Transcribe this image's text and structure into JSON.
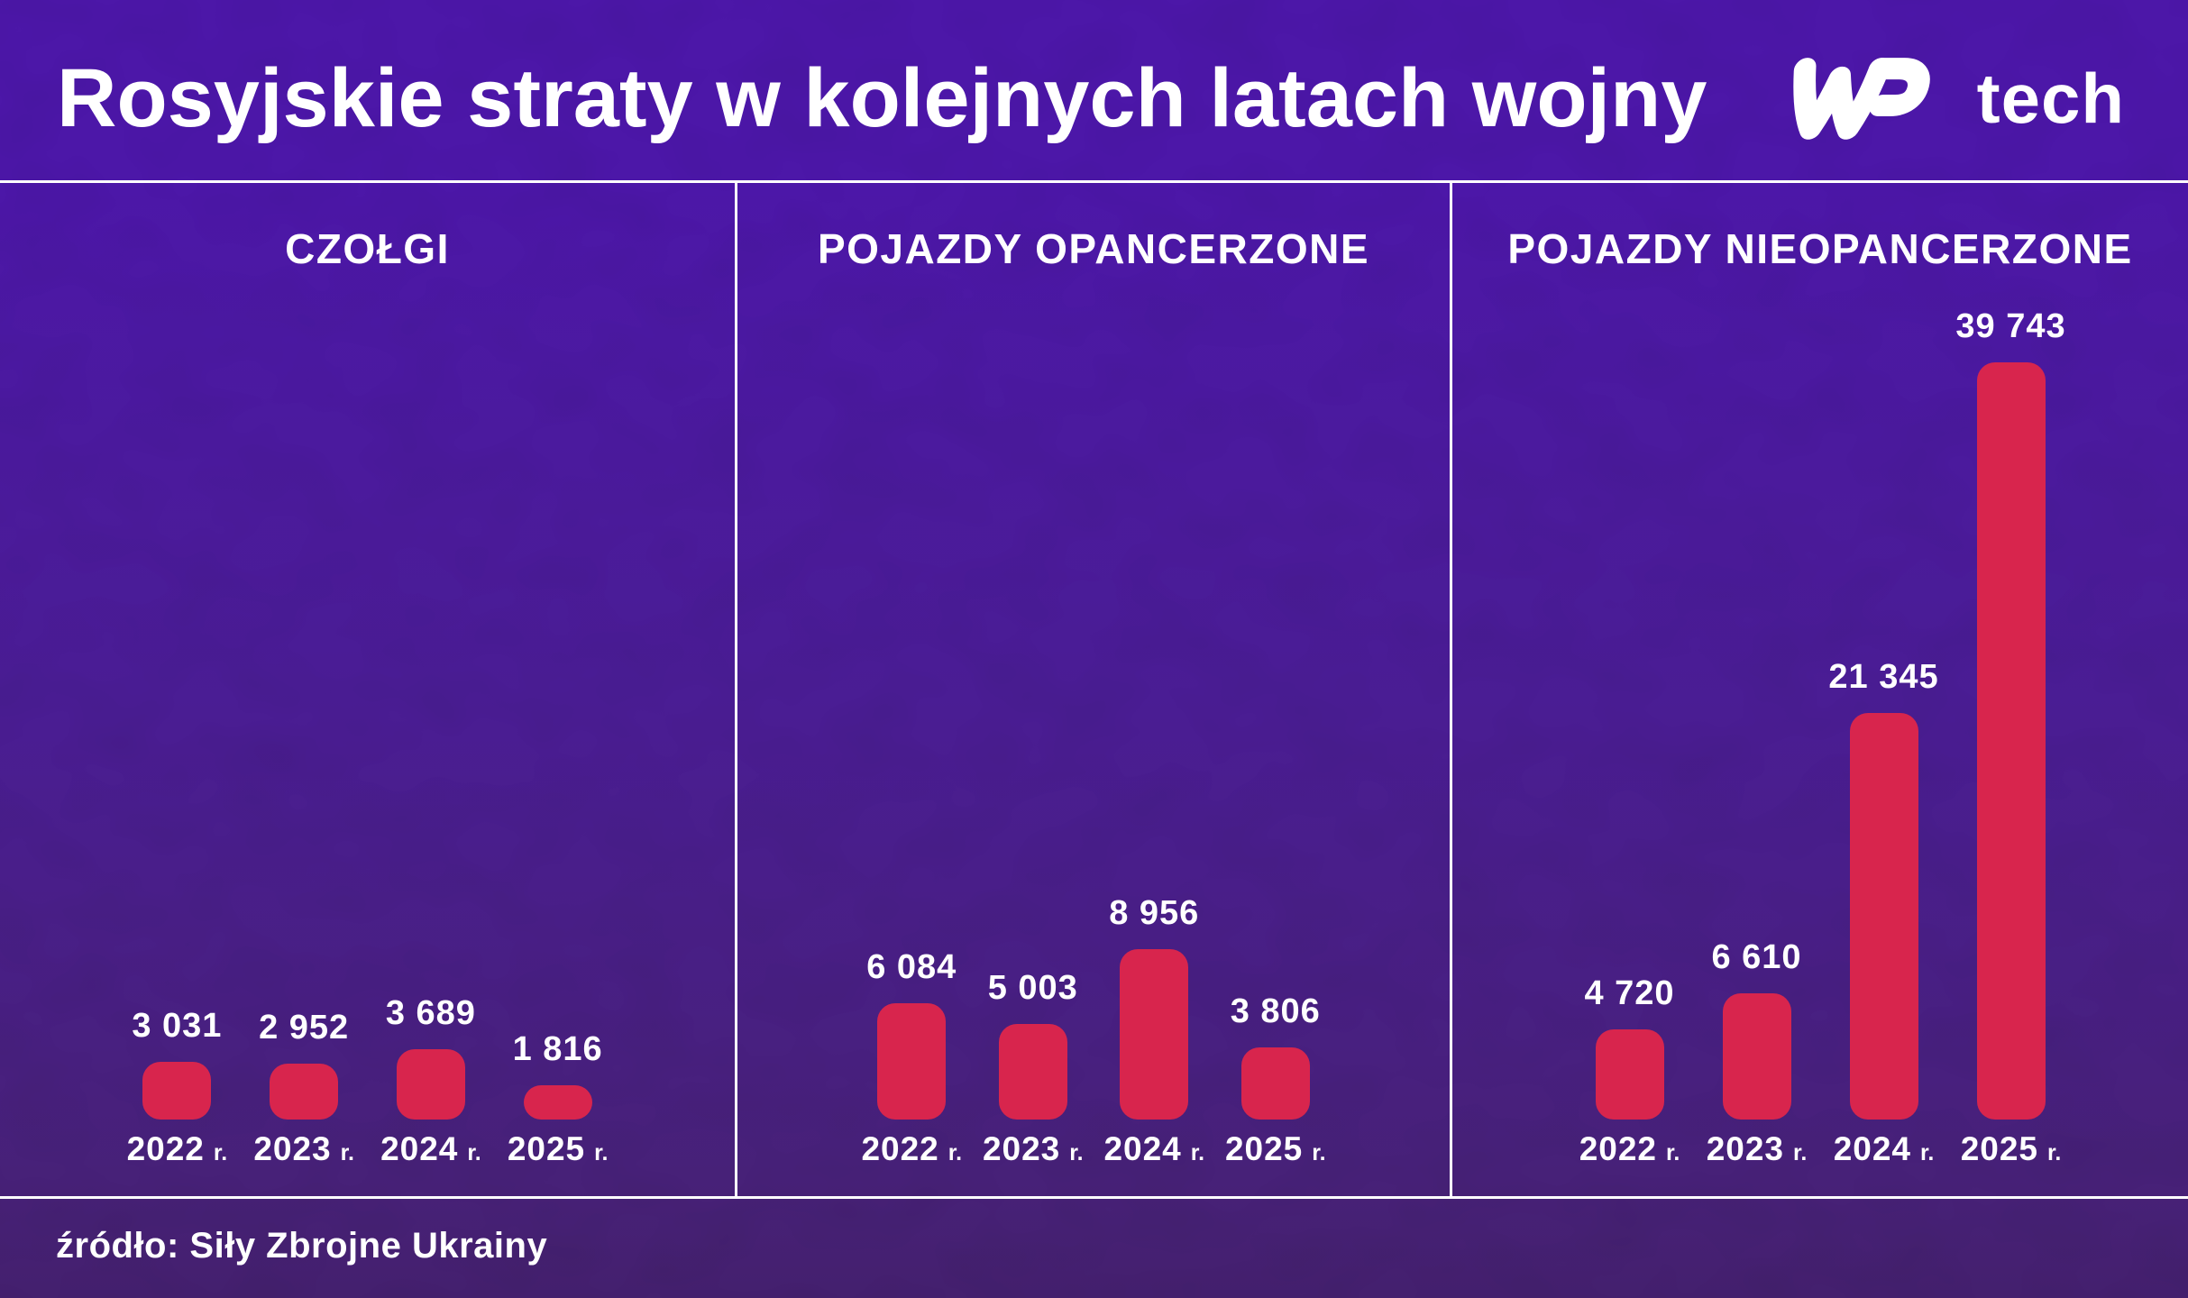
{
  "header": {
    "title": "Rosyjskie straty w kolejnych latach wojny",
    "logo_suffix": "tech"
  },
  "footer": {
    "source": "źródło: Siły Zbrojne Ukrainy"
  },
  "colors": {
    "bar": "#d8254d",
    "bg_top": "#4c17a8",
    "bg_mid": "#4a1d93",
    "bg_bottom": "#472177",
    "bg_footer": "#44206e",
    "text": "#ffffff",
    "divider": "#ffffff"
  },
  "chart_data": {
    "type": "bar",
    "title": "Rosyjskie straty w kolejnych latach wojny",
    "source": "źródło: Siły Zbrojne Ukrainy",
    "categories": [
      "2022 r.",
      "2023 r.",
      "2024 r.",
      "2025 r."
    ],
    "years": [
      "2022",
      "2023",
      "2024",
      "2025"
    ],
    "year_suffix": "r.",
    "max_value": 39743,
    "legend": "none",
    "grid": false,
    "panels": [
      {
        "label": "CZOŁGI",
        "values": [
          3031,
          2952,
          3689,
          1816
        ],
        "values_display": [
          "3 031",
          "2 952",
          "3 689",
          "1 816"
        ]
      },
      {
        "label": "POJAZDY OPANCERZONE",
        "values": [
          6084,
          5003,
          8956,
          3806
        ],
        "values_display": [
          "6 084",
          "5 003",
          "8 956",
          "3 806"
        ]
      },
      {
        "label": "POJAZDY NIEOPANCERZONE",
        "values": [
          4720,
          6610,
          21345,
          39743
        ],
        "values_display": [
          "4 720",
          "6 610",
          "21 345",
          "39 743"
        ]
      }
    ]
  }
}
